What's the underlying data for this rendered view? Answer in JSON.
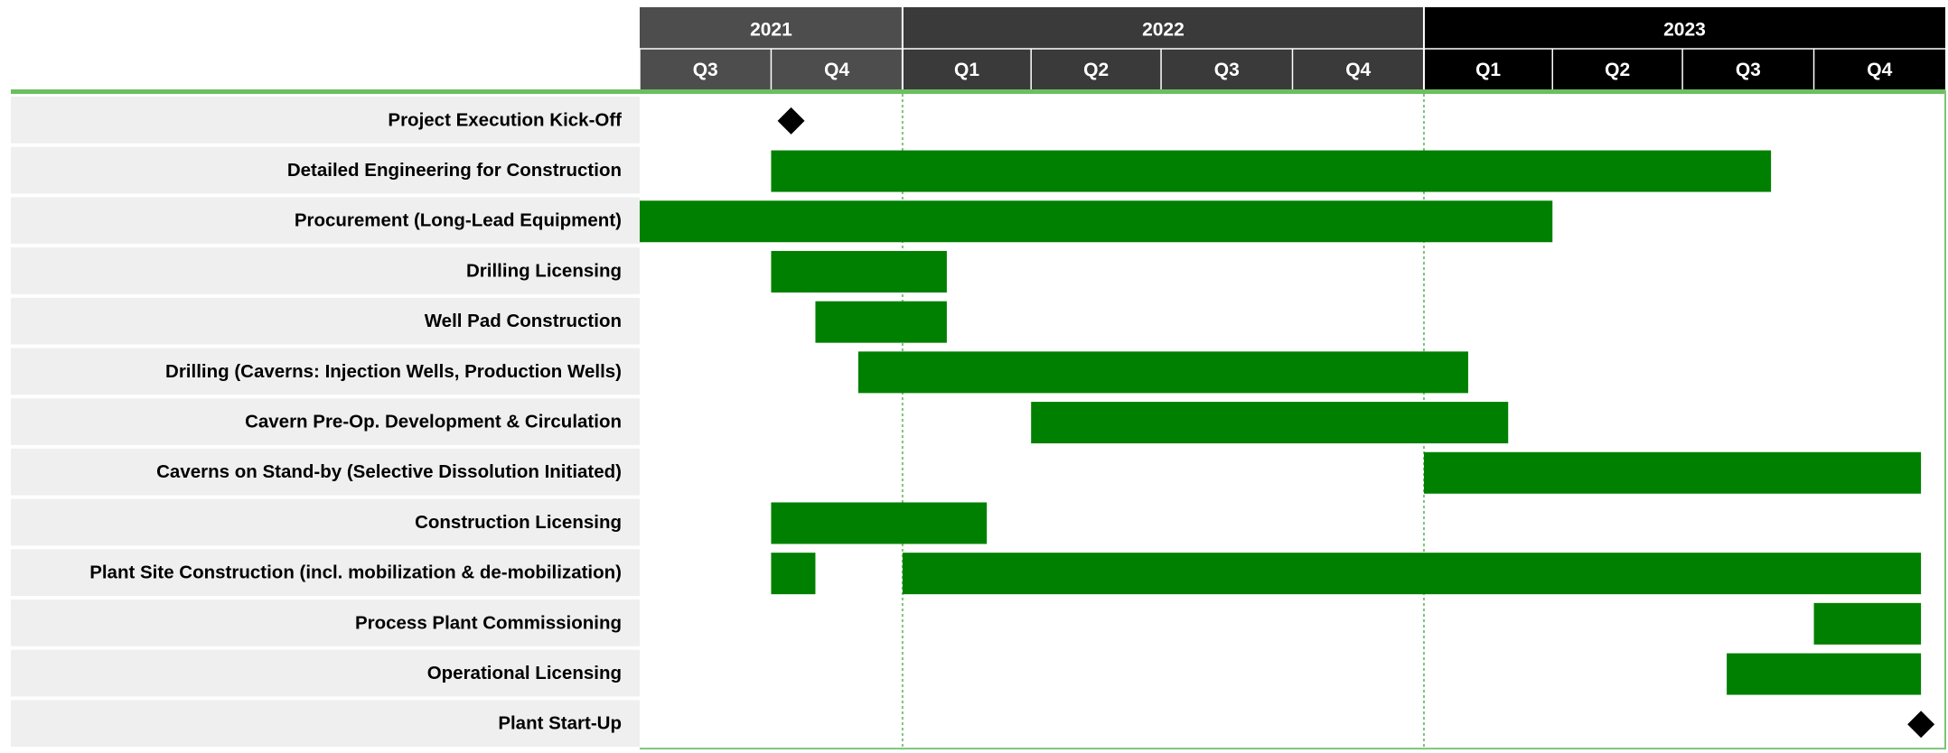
{
  "colors": {
    "bar": "#008000",
    "milestone": "#000000",
    "header_2021": "#4d4d4d",
    "header_2022": "#3a3a3a",
    "header_2023": "#000000",
    "row_label_bg": "#efefef",
    "separator": "#6abf5e",
    "year_divider": "#7cc47a",
    "header_text": "#ffffff",
    "label_text": "#000000"
  },
  "chart_data": {
    "type": "gantt",
    "title": "",
    "time_unit": "quarter",
    "years": [
      {
        "label": "2021",
        "start": "2021-07-01",
        "end": "2022-01-01"
      },
      {
        "label": "2022",
        "start": "2022-01-01",
        "end": "2023-01-01"
      },
      {
        "label": "2023",
        "start": "2023-01-01",
        "end": "2024-01-01"
      }
    ],
    "quarters": [
      {
        "label": "Q3",
        "start": "2021-07-01",
        "end": "2021-10-01"
      },
      {
        "label": "Q4",
        "start": "2021-10-01",
        "end": "2022-01-01"
      },
      {
        "label": "Q1",
        "start": "2022-01-01",
        "end": "2022-04-01"
      },
      {
        "label": "Q2",
        "start": "2022-04-01",
        "end": "2022-07-01"
      },
      {
        "label": "Q3",
        "start": "2022-07-01",
        "end": "2022-10-01"
      },
      {
        "label": "Q4",
        "start": "2022-10-01",
        "end": "2023-01-01"
      },
      {
        "label": "Q1",
        "start": "2023-01-01",
        "end": "2023-04-01"
      },
      {
        "label": "Q2",
        "start": "2023-04-01",
        "end": "2023-07-01"
      },
      {
        "label": "Q3",
        "start": "2023-07-01",
        "end": "2023-10-01"
      },
      {
        "label": "Q4",
        "start": "2023-10-01",
        "end": "2024-01-01"
      }
    ],
    "tasks": [
      {
        "name": "Project Execution Kick-Off",
        "milestone": "2021-10-15"
      },
      {
        "name": "Detailed Engineering for Construction",
        "segments": [
          [
            "2021-10-01",
            "2023-09-01"
          ]
        ]
      },
      {
        "name": "Procurement (Long-Lead Equipment)",
        "segments": [
          [
            "2021-07-01",
            "2023-04-01"
          ]
        ]
      },
      {
        "name": "Drilling Licensing",
        "segments": [
          [
            "2021-10-01",
            "2022-02-01"
          ]
        ]
      },
      {
        "name": "Well Pad Construction",
        "segments": [
          [
            "2021-11-01",
            "2022-02-01"
          ]
        ]
      },
      {
        "name": "Drilling (Caverns: Injection Wells, Production Wells)",
        "segments": [
          [
            "2021-12-01",
            "2023-02-01"
          ]
        ]
      },
      {
        "name": "Cavern Pre-Op. Development & Circulation",
        "segments": [
          [
            "2022-04-01",
            "2023-03-01"
          ]
        ]
      },
      {
        "name": "Caverns on Stand-by (Selective Dissolution Initiated)",
        "segments": [
          [
            "2023-01-01",
            "2023-12-15"
          ]
        ]
      },
      {
        "name": "Construction Licensing",
        "segments": [
          [
            "2021-10-01",
            "2022-03-01"
          ]
        ]
      },
      {
        "name": "Plant Site Construction (incl. mobilization & de-mobilization)",
        "segments": [
          [
            "2021-10-01",
            "2021-11-01"
          ],
          [
            "2022-01-01",
            "2023-12-15"
          ]
        ]
      },
      {
        "name": "Process Plant Commissioning",
        "segments": [
          [
            "2023-10-01",
            "2023-12-15"
          ]
        ]
      },
      {
        "name": "Operational Licensing",
        "segments": [
          [
            "2023-08-01",
            "2023-12-15"
          ]
        ]
      },
      {
        "name": "Plant Start-Up",
        "milestone": "2023-12-15"
      }
    ]
  }
}
